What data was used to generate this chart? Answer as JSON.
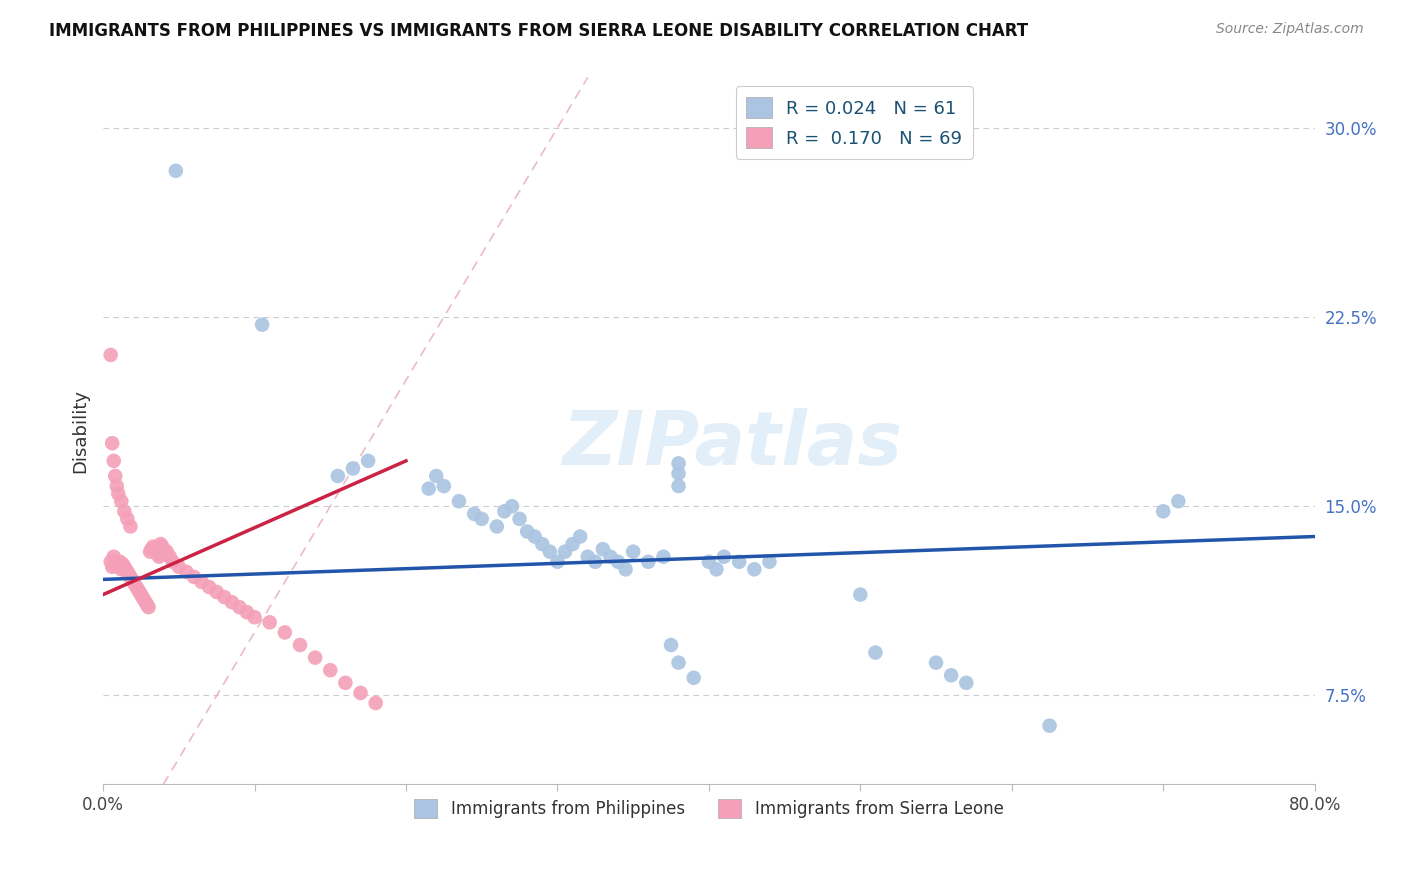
{
  "title": "IMMIGRANTS FROM PHILIPPINES VS IMMIGRANTS FROM SIERRA LEONE DISABILITY CORRELATION CHART",
  "source": "Source: ZipAtlas.com",
  "ylabel": "Disability",
  "xlim": [
    0.0,
    0.8
  ],
  "ylim": [
    0.04,
    0.32
  ],
  "xticks": [
    0.0,
    0.1,
    0.2,
    0.3,
    0.4,
    0.5,
    0.6,
    0.7,
    0.8
  ],
  "yticks": [
    0.075,
    0.15,
    0.225,
    0.3
  ],
  "yticklabels": [
    "7.5%",
    "15.0%",
    "22.5%",
    "30.0%"
  ],
  "color_philippines": "#aac4e2",
  "color_sierra_leone": "#f4a0b8",
  "trendline_philippines": "#2255aa",
  "trendline_sierra_leone": "#cc2244",
  "diag_color": "#e0a0a8",
  "philippines_x": [
    0.048,
    0.105,
    0.38,
    0.38,
    0.38,
    0.155,
    0.165,
    0.175,
    0.215,
    0.22,
    0.225,
    0.235,
    0.245,
    0.25,
    0.26,
    0.265,
    0.27,
    0.275,
    0.28,
    0.285,
    0.29,
    0.295,
    0.3,
    0.305,
    0.31,
    0.315,
    0.32,
    0.325,
    0.33,
    0.335,
    0.34,
    0.345,
    0.35,
    0.36,
    0.37,
    0.4,
    0.405,
    0.41,
    0.42,
    0.43,
    0.44,
    0.375,
    0.38,
    0.39,
    0.5,
    0.51,
    0.55,
    0.56,
    0.57,
    0.625,
    0.7,
    0.71
  ],
  "philippines_y": [
    0.283,
    0.222,
    0.167,
    0.163,
    0.158,
    0.162,
    0.165,
    0.168,
    0.157,
    0.162,
    0.158,
    0.152,
    0.147,
    0.145,
    0.142,
    0.148,
    0.15,
    0.145,
    0.14,
    0.138,
    0.135,
    0.132,
    0.128,
    0.132,
    0.135,
    0.138,
    0.13,
    0.128,
    0.133,
    0.13,
    0.128,
    0.125,
    0.132,
    0.128,
    0.13,
    0.128,
    0.125,
    0.13,
    0.128,
    0.125,
    0.128,
    0.095,
    0.088,
    0.082,
    0.115,
    0.092,
    0.088,
    0.083,
    0.08,
    0.063,
    0.148,
    0.152
  ],
  "sierra_leone_x": [
    0.005,
    0.006,
    0.007,
    0.008,
    0.009,
    0.01,
    0.011,
    0.012,
    0.013,
    0.014,
    0.015,
    0.016,
    0.017,
    0.018,
    0.019,
    0.02,
    0.021,
    0.022,
    0.023,
    0.024,
    0.025,
    0.026,
    0.027,
    0.028,
    0.029,
    0.03,
    0.031,
    0.032,
    0.033,
    0.034,
    0.035,
    0.036,
    0.037,
    0.038,
    0.039,
    0.04,
    0.042,
    0.044,
    0.046,
    0.05,
    0.055,
    0.06,
    0.065,
    0.07,
    0.075,
    0.08,
    0.085,
    0.09,
    0.095,
    0.1,
    0.11,
    0.12,
    0.13,
    0.14,
    0.15,
    0.16,
    0.17,
    0.18,
    0.005,
    0.006,
    0.007,
    0.008,
    0.009,
    0.01,
    0.012,
    0.014,
    0.016,
    0.018
  ],
  "sierra_leone_y": [
    0.128,
    0.126,
    0.13,
    0.128,
    0.127,
    0.126,
    0.128,
    0.125,
    0.127,
    0.126,
    0.125,
    0.124,
    0.123,
    0.122,
    0.121,
    0.12,
    0.119,
    0.118,
    0.117,
    0.116,
    0.115,
    0.114,
    0.113,
    0.112,
    0.111,
    0.11,
    0.132,
    0.133,
    0.134,
    0.133,
    0.132,
    0.131,
    0.13,
    0.135,
    0.134,
    0.133,
    0.132,
    0.13,
    0.128,
    0.126,
    0.124,
    0.122,
    0.12,
    0.118,
    0.116,
    0.114,
    0.112,
    0.11,
    0.108,
    0.106,
    0.104,
    0.1,
    0.095,
    0.09,
    0.085,
    0.08,
    0.076,
    0.072,
    0.21,
    0.175,
    0.168,
    0.162,
    0.158,
    0.155,
    0.152,
    0.148,
    0.145,
    0.142
  ],
  "phil_trend_x": [
    0.0,
    0.8
  ],
  "phil_trend_y": [
    0.121,
    0.138
  ],
  "sl_trend_x": [
    0.0,
    0.2
  ],
  "sl_trend_y": [
    0.115,
    0.168
  ]
}
